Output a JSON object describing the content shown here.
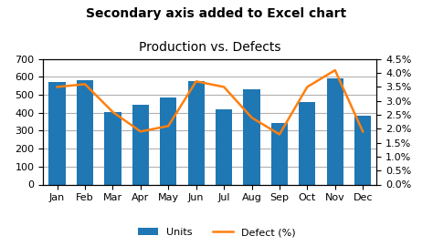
{
  "chart_data": {
    "type": "bar",
    "title": "Production vs. Defects",
    "subtitle": "Secondary axis added to Excel chart",
    "categories": [
      "Jan",
      "Feb",
      "Mar",
      "Apr",
      "May",
      "Jun",
      "Jul",
      "Aug",
      "Sep",
      "Oct",
      "Nov",
      "Dec"
    ],
    "series": [
      {
        "name": "Units",
        "type": "bar",
        "values": [
          573,
          584,
          403,
          447,
          486,
          579,
          420,
          533,
          343,
          462,
          594,
          382
        ]
      },
      {
        "name": "Defect (%)",
        "type": "line",
        "axis": "y2",
        "values": [
          3.5,
          3.6,
          2.6,
          1.9,
          2.1,
          3.7,
          3.5,
          2.4,
          1.8,
          3.5,
          4.1,
          1.9
        ]
      }
    ],
    "ylim": [
      0,
      700
    ],
    "yticks": [
      0,
      100,
      200,
      300,
      400,
      500,
      600,
      700
    ],
    "y2lim": [
      0.0,
      4.5
    ],
    "y2ticks": [
      {
        "value": 0.0,
        "label": "0.0%"
      },
      {
        "value": 0.5,
        "label": "0.5%"
      },
      {
        "value": 1.0,
        "label": "1.0%"
      },
      {
        "value": 1.5,
        "label": "1.5%"
      },
      {
        "value": 2.0,
        "label": "2.0%"
      },
      {
        "value": 2.5,
        "label": "2.5%"
      },
      {
        "value": 3.0,
        "label": "3.0%"
      },
      {
        "value": 3.5,
        "label": "3.5%"
      },
      {
        "value": 4.0,
        "label": "4.0%"
      },
      {
        "value": 4.5,
        "label": "4.5%"
      }
    ],
    "grid": true,
    "legend": "lower center"
  }
}
